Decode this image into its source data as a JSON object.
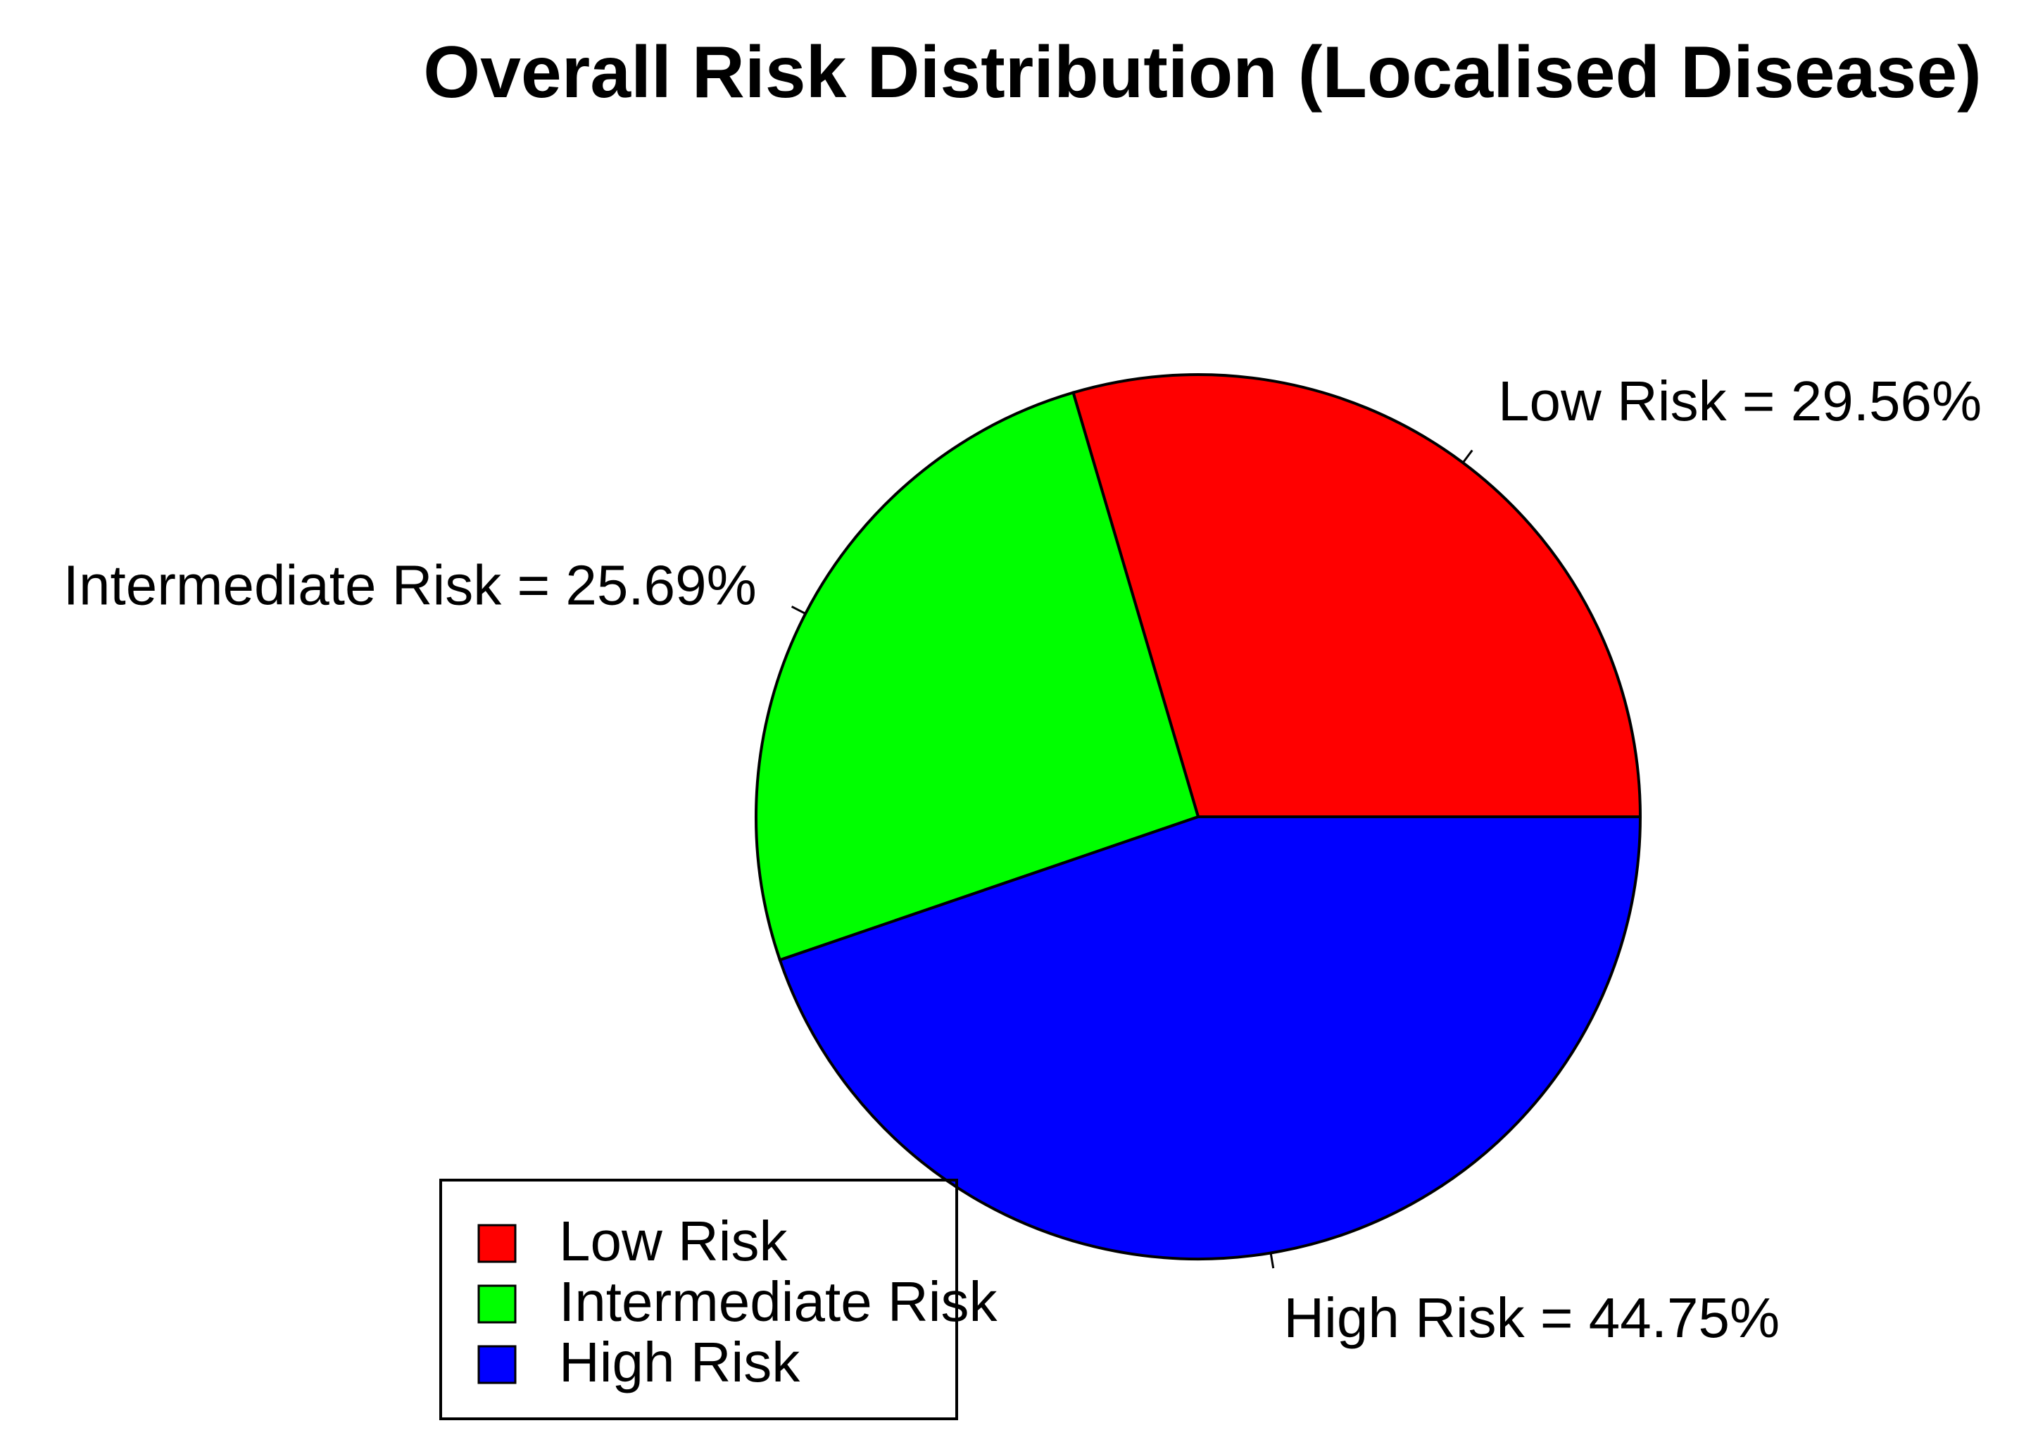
{
  "chart_data": {
    "type": "pie",
    "title": "Overall Risk Distribution (Localised Disease)",
    "slices": [
      {
        "name": "Low Risk",
        "value": 29.56,
        "label": "Low Risk = 29.56%",
        "color": "#ff0000"
      },
      {
        "name": "Intermediate Risk",
        "value": 25.69,
        "label": "Intermediate Risk = 25.69%",
        "color": "#00ff00"
      },
      {
        "name": "High Risk",
        "value": 44.75,
        "label": "High Risk = 44.75%",
        "color": "#0000ff"
      }
    ],
    "legend": {
      "placement": "bottom-left",
      "entries": [
        "Low Risk",
        "Intermediate Risk",
        "High Risk"
      ]
    }
  }
}
